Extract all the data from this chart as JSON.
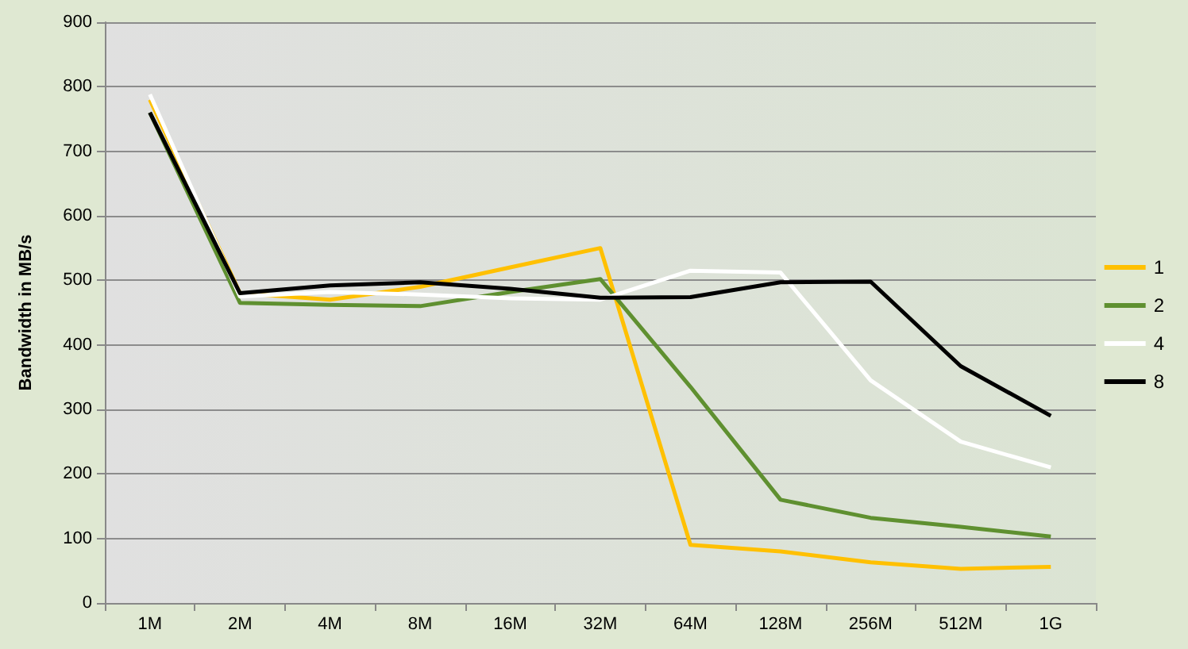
{
  "chart_data": {
    "type": "line",
    "ylabel": "Bandwidth in MB/s",
    "categories": [
      "1M",
      "2M",
      "4M",
      "8M",
      "16M",
      "32M",
      "64M",
      "128M",
      "256M",
      "512M",
      "1G"
    ],
    "series": [
      {
        "name": "1",
        "color": "#ffc000",
        "values": [
          780,
          480,
          470,
          490,
          520,
          550,
          90,
          80,
          63,
          53,
          56
        ]
      },
      {
        "name": "2",
        "color": "#5f9030",
        "values": [
          760,
          465,
          462,
          460,
          482,
          502,
          335,
          160,
          132,
          118,
          103
        ]
      },
      {
        "name": "4",
        "color": "#ffffff",
        "values": [
          788,
          475,
          482,
          478,
          472,
          470,
          515,
          512,
          345,
          250,
          210
        ]
      },
      {
        "name": "8",
        "color": "#000000",
        "values": [
          760,
          480,
          492,
          497,
          487,
          473,
          474,
          497,
          498,
          367,
          290
        ]
      }
    ],
    "ylim": [
      0,
      900
    ],
    "yticks": [
      0,
      100,
      200,
      300,
      400,
      500,
      600,
      700,
      800,
      900
    ],
    "grid": "y",
    "legend": "right",
    "marker": "none",
    "line_style": "solid"
  }
}
